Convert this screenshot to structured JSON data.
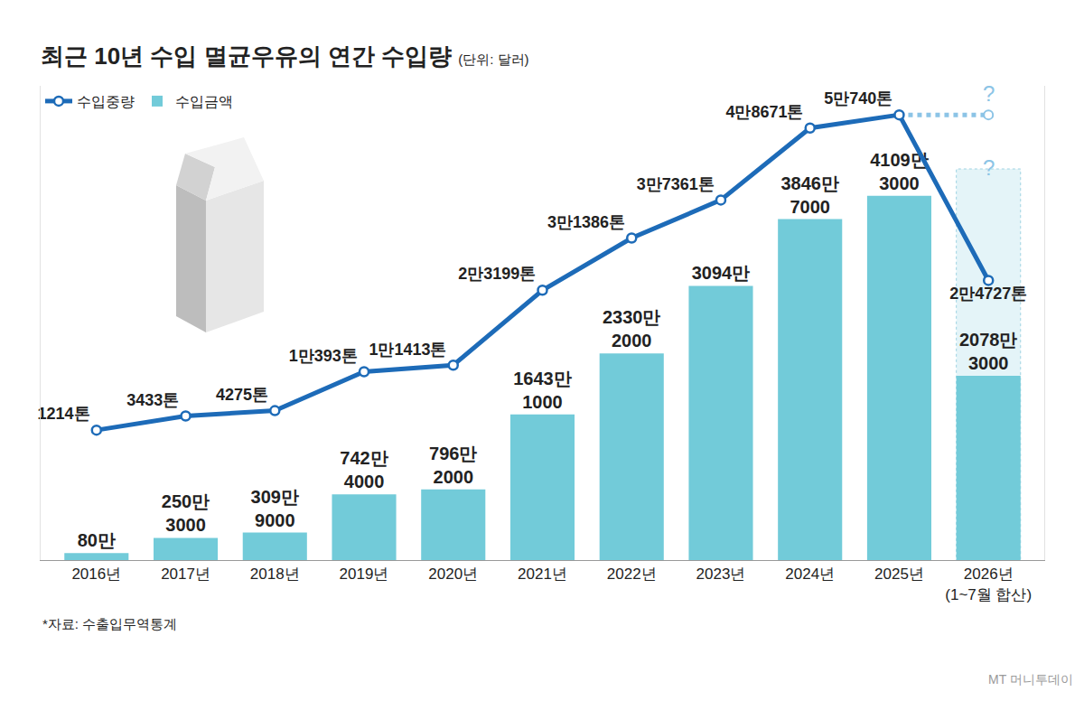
{
  "chart_data": {
    "type": "bar",
    "title": "최근 10년 수입 멸균우유의 연간 수입량",
    "subtitle": "(단위: 달러)",
    "categories": [
      "2016년",
      "2017년",
      "2018년",
      "2019년",
      "2020년",
      "2021년",
      "2022년",
      "2023년",
      "2024년",
      "2025년",
      "2026년\n(1~7월 합산)"
    ],
    "series": [
      {
        "name": "수입중량",
        "type": "line",
        "axis": "y2",
        "color": "#1d6bb8",
        "marker": "circle",
        "line_style": "solid",
        "values": [
          1214,
          3433,
          4275,
          10393,
          11413,
          23199,
          31386,
          37361,
          48671,
          50740,
          24727
        ],
        "value_labels": [
          "1214톤",
          "3433톤",
          "4275톤",
          "1만393톤",
          "1만1413톤",
          "2만3199톤",
          "3만1386톤",
          "3만7361톤",
          "4만8671톤",
          "5만740톤",
          "2만4727톤"
        ]
      },
      {
        "name": "수입금액",
        "type": "bar",
        "color": "#72cbd9",
        "values": [
          800000,
          2503000,
          3099000,
          7424000,
          7962000,
          16431000,
          23302000,
          30940000,
          38467000,
          41093000,
          20783000
        ],
        "value_labels": [
          "80만",
          "250만 3000",
          "309만 9000",
          "742만 4000",
          "796만 2000",
          "1643만 1000",
          "2330만 2000",
          "3094만",
          "3846만 7000",
          "4109만 3000",
          "2078만 3000"
        ]
      }
    ],
    "ylim": [
      0,
      53500000
    ],
    "yticks": [],
    "y2lim": [
      -19200,
      55300
    ],
    "y2ticks": [],
    "tick_labels": "x",
    "data_labels": true,
    "grid": false,
    "legend": "top left",
    "annotations": [
      "?",
      "?"
    ],
    "source": "*자료: 수출입무역통계",
    "credit": "MT 머니투데이"
  }
}
